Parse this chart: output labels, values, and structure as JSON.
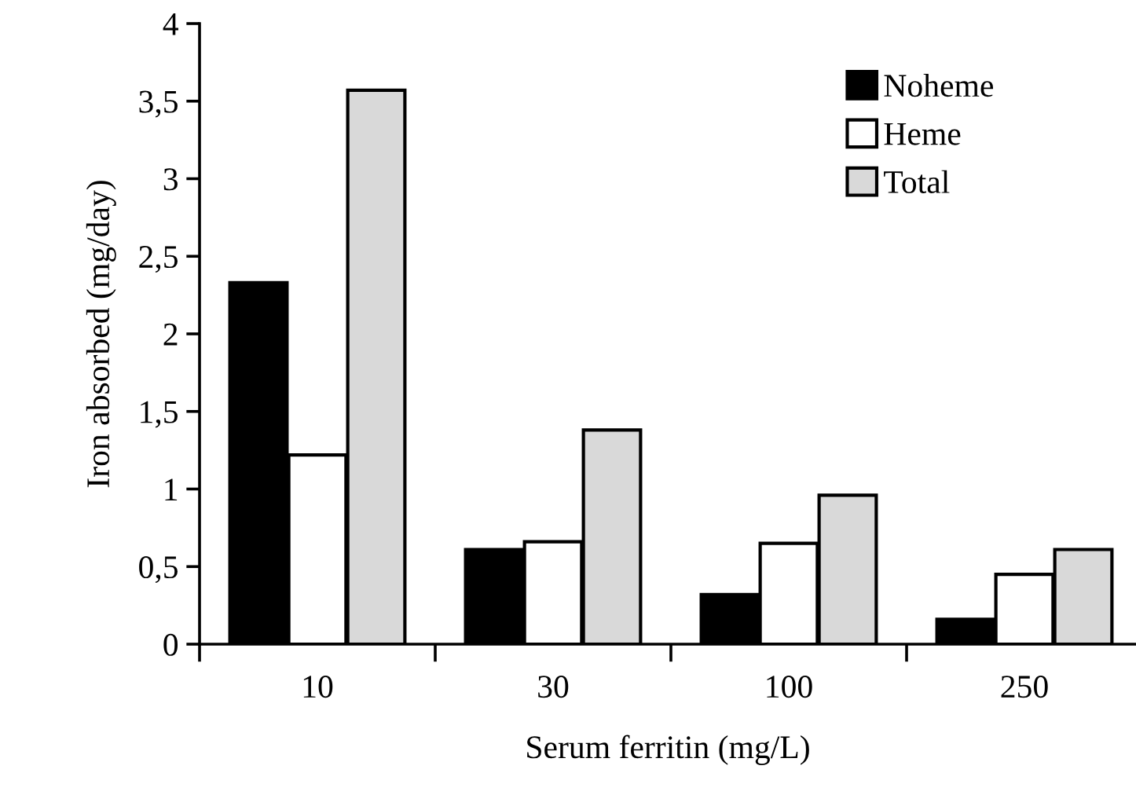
{
  "chart_data": {
    "type": "bar",
    "xlabel": "Serum ferritin (mg/L)",
    "ylabel": "Iron absorbed (mg/day)",
    "categories": [
      "10",
      "30",
      "100",
      "250"
    ],
    "series": [
      {
        "name": "Noheme",
        "color": "#000000",
        "values": [
          2.33,
          0.61,
          0.32,
          0.16
        ]
      },
      {
        "name": "Heme",
        "color": "#ffffff",
        "values": [
          1.22,
          0.66,
          0.65,
          0.45
        ]
      },
      {
        "name": "Total",
        "color": "#d9d9d9",
        "values": [
          3.57,
          1.38,
          0.96,
          0.61
        ]
      }
    ],
    "ylim": [
      0,
      4
    ],
    "yticks": [
      0,
      {
        "value": 0.5,
        "label": "0,5"
      },
      1,
      {
        "value": 1.5,
        "label": "1,5"
      },
      2,
      {
        "value": 2.5,
        "label": "2,5"
      },
      3,
      {
        "value": 3.5,
        "label": "3,5"
      },
      4
    ],
    "grid": false,
    "legend": "top right"
  }
}
